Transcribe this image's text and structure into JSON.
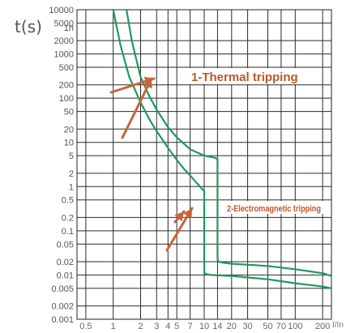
{
  "chart_data": {
    "type": "line",
    "title": "",
    "ylabel": "t(s)",
    "xlabel": "I/In",
    "x_scale": "log",
    "y_scale": "log",
    "xlim": [
      0.4,
      250
    ],
    "ylim": [
      0.001,
      10000
    ],
    "grid": true,
    "y_ticks": [
      {
        "value": 10000,
        "label": "10000"
      },
      {
        "value": 5000,
        "label": "5000"
      },
      {
        "value": 3600,
        "label": "1h"
      },
      {
        "value": 2000,
        "label": "2000"
      },
      {
        "value": 1000,
        "label": "1000"
      },
      {
        "value": 500,
        "label": "500"
      },
      {
        "value": 200,
        "label": "200"
      },
      {
        "value": 100,
        "label": "100"
      },
      {
        "value": 50,
        "label": "50"
      },
      {
        "value": 20,
        "label": "20"
      },
      {
        "value": 10,
        "label": "10"
      },
      {
        "value": 5,
        "label": "5"
      },
      {
        "value": 2,
        "label": "2"
      },
      {
        "value": 1,
        "label": "1"
      },
      {
        "value": 0.5,
        "label": "0.5"
      },
      {
        "value": 0.2,
        "label": "0.2"
      },
      {
        "value": 0.1,
        "label": "0.1"
      },
      {
        "value": 0.05,
        "label": "0.05"
      },
      {
        "value": 0.02,
        "label": "0.02"
      },
      {
        "value": 0.01,
        "label": "0.01"
      },
      {
        "value": 0.005,
        "label": "0.005"
      },
      {
        "value": 0.002,
        "label": "0.002"
      },
      {
        "value": 0.001,
        "label": "0.001"
      }
    ],
    "x_ticks": [
      {
        "value": 0.5,
        "label": "0.5"
      },
      {
        "value": 1,
        "label": "1"
      },
      {
        "value": 2,
        "label": "2"
      },
      {
        "value": 3,
        "label": "3"
      },
      {
        "value": 4,
        "label": "4"
      },
      {
        "value": 5,
        "label": "5"
      },
      {
        "value": 7,
        "label": "7"
      },
      {
        "value": 10,
        "label": "10"
      },
      {
        "value": 14,
        "label": "14"
      },
      {
        "value": 20,
        "label": "20"
      },
      {
        "value": 30,
        "label": "30"
      },
      {
        "value": 50,
        "label": "50"
      },
      {
        "value": 70,
        "label": "70"
      },
      {
        "value": 100,
        "label": "100"
      },
      {
        "value": 200,
        "label": "200"
      }
    ],
    "x_gridlines": [
      0.5,
      1,
      2,
      3,
      4,
      5,
      7,
      10,
      14,
      20,
      30,
      50,
      70,
      100,
      200
    ],
    "y_gridlines": [
      10000,
      5000,
      2000,
      1000,
      500,
      200,
      100,
      50,
      20,
      10,
      5,
      2,
      1,
      0.5,
      0.2,
      0.1,
      0.05,
      0.02,
      0.01,
      0.005,
      0.002,
      0.001
    ],
    "series": [
      {
        "color": "#1e9a5a",
        "x": [
          1.0,
          1.2,
          1.5,
          2.0,
          2.5,
          3,
          4,
          5,
          6,
          7,
          8,
          9,
          9.6,
          10,
          10.0,
          10.05,
          10.5,
          12,
          20,
          50,
          100,
          200,
          250
        ],
        "y": [
          10000,
          1600,
          300,
          80,
          33,
          18,
          7.5,
          4,
          2.5,
          1.8,
          1.3,
          1.0,
          0.85,
          0.8,
          0.02,
          0.011,
          0.0105,
          0.01,
          0.0095,
          0.008,
          0.0065,
          0.0055,
          0.005
        ]
      },
      {
        "color": "#1e9a5a",
        "x": [
          1.4,
          1.6,
          2,
          2.5,
          3,
          4,
          5,
          7,
          10,
          13,
          14,
          14.0,
          14.05,
          14.5,
          16,
          20,
          50,
          100,
          200,
          250
        ],
        "y": [
          10000,
          2000,
          300,
          110,
          55,
          22,
          13,
          7,
          5,
          4.5,
          4.2,
          0.03,
          0.022,
          0.02,
          0.019,
          0.018,
          0.016,
          0.0135,
          0.011,
          0.0095
        ]
      }
    ],
    "annotations": [
      {
        "text": "1-Thermal tripping"
      },
      {
        "text": "2-Electromagnetic tripping"
      }
    ]
  }
}
